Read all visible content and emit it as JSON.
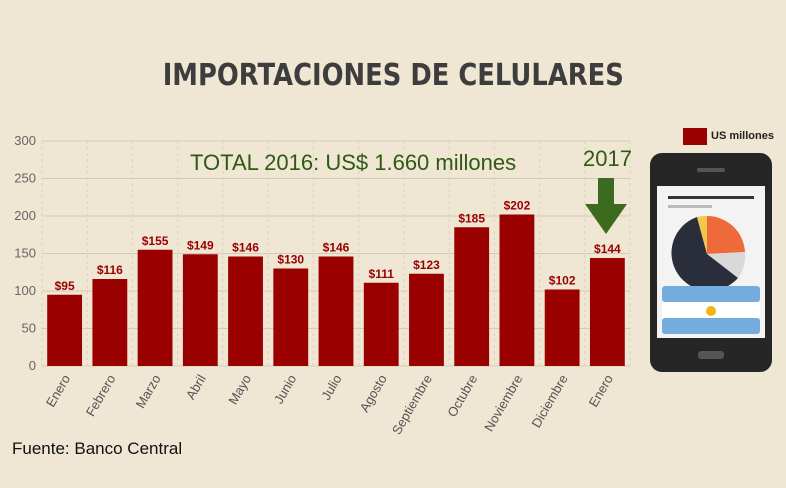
{
  "colors": {
    "background": "#efe6d3",
    "bar": "#9b0000",
    "highlight": "#2f5a12",
    "arrow": "#3c6b1f"
  },
  "chart_data": {
    "type": "bar",
    "title": "IMPORTACIONES DE CELULARES",
    "annotation": "TOTAL 2016: US$ 1.660 millones",
    "highlight_label": "2017",
    "legend": [
      "US millones"
    ],
    "legend_placement": "top-right",
    "source": "Fuente: Banco Central",
    "categories": [
      "Enero",
      "Febrero",
      "Marzo",
      "Abril",
      "Mayo",
      "Junio",
      "Julio",
      "Agosto",
      "Septiembre",
      "Octubre",
      "Noviembre",
      "Diciembre",
      "Enero"
    ],
    "values": [
      95,
      116,
      155,
      149,
      146,
      130,
      146,
      111,
      123,
      185,
      202,
      102,
      144
    ],
    "value_labels": [
      "$95",
      "$116",
      "$155",
      "$149",
      "$146",
      "$130",
      "$146",
      "$111",
      "$123",
      "$185",
      "$202",
      "$102",
      "$144"
    ],
    "series": [
      {
        "name": "US millones",
        "values": [
          95,
          116,
          155,
          149,
          146,
          130,
          146,
          111,
          123,
          185,
          202,
          102,
          144
        ]
      }
    ],
    "ylim": [
      0,
      300
    ],
    "yticks": [
      0,
      50,
      100,
      150,
      200,
      250,
      300
    ],
    "grid": true
  }
}
